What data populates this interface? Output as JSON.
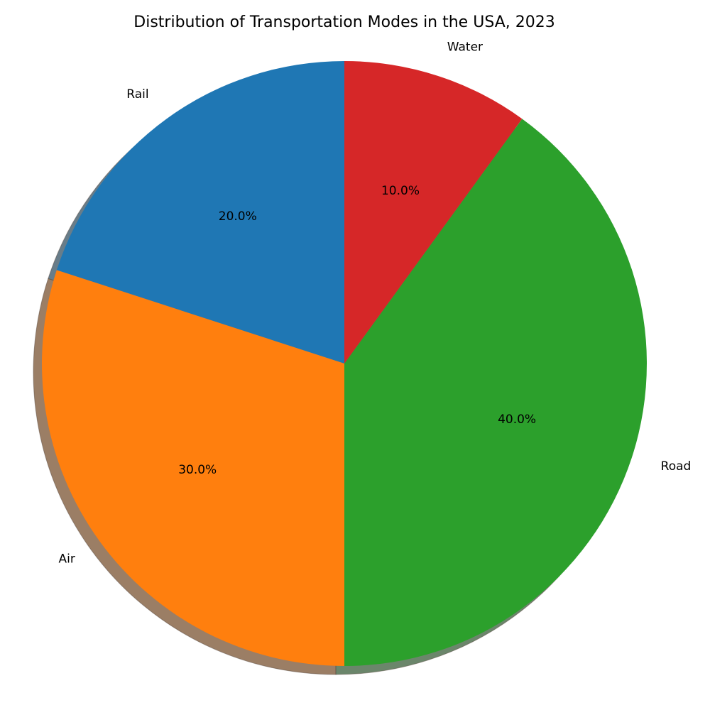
{
  "chart_data": {
    "type": "pie",
    "title": "Distribution of Transportation Modes in the USA, 2023",
    "categories": [
      "Rail",
      "Air",
      "Road",
      "Water"
    ],
    "values": [
      20.0,
      30.0,
      40.0,
      10.0
    ],
    "percent_labels": [
      "20.0%",
      "30.0%",
      "40.0%",
      "10.0%"
    ],
    "colors": [
      "#1f77b4",
      "#ff7f0e",
      "#2ca02c",
      "#d62728"
    ],
    "start_angle_deg": 90,
    "direction": "counterclockwise",
    "shadow": true,
    "legend": "none"
  }
}
